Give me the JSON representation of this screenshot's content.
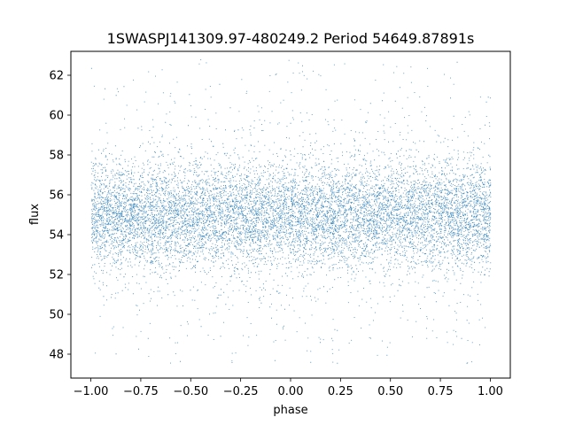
{
  "chart_data": {
    "type": "scatter",
    "title": "1SWASPJ141309.97-480249.2 Period 54649.87891s",
    "xlabel": "phase",
    "ylabel": "flux",
    "xlim": [
      -1.1,
      1.1
    ],
    "ylim": [
      46.8,
      63.2
    ],
    "xticks": [
      -1.0,
      -0.75,
      -0.5,
      -0.25,
      0.0,
      0.25,
      0.5,
      0.75,
      1.0
    ],
    "xtick_labels": [
      "−1.00",
      "−0.75",
      "−0.50",
      "−0.25",
      "0.00",
      "0.25",
      "0.50",
      "0.75",
      "1.00"
    ],
    "yticks": [
      48,
      50,
      52,
      54,
      56,
      58,
      60,
      62
    ],
    "ytick_labels": [
      "48",
      "50",
      "52",
      "54",
      "56",
      "58",
      "60",
      "62"
    ],
    "grid": false,
    "legend": "none",
    "marker_color": "#1f77b4",
    "series": [
      {
        "phase_range": [
          -1.0,
          1.0
        ],
        "flux_center": 55.0,
        "flux_core_spread": 1.3,
        "flux_min": 47.5,
        "flux_max": 62.8
      }
    ]
  }
}
